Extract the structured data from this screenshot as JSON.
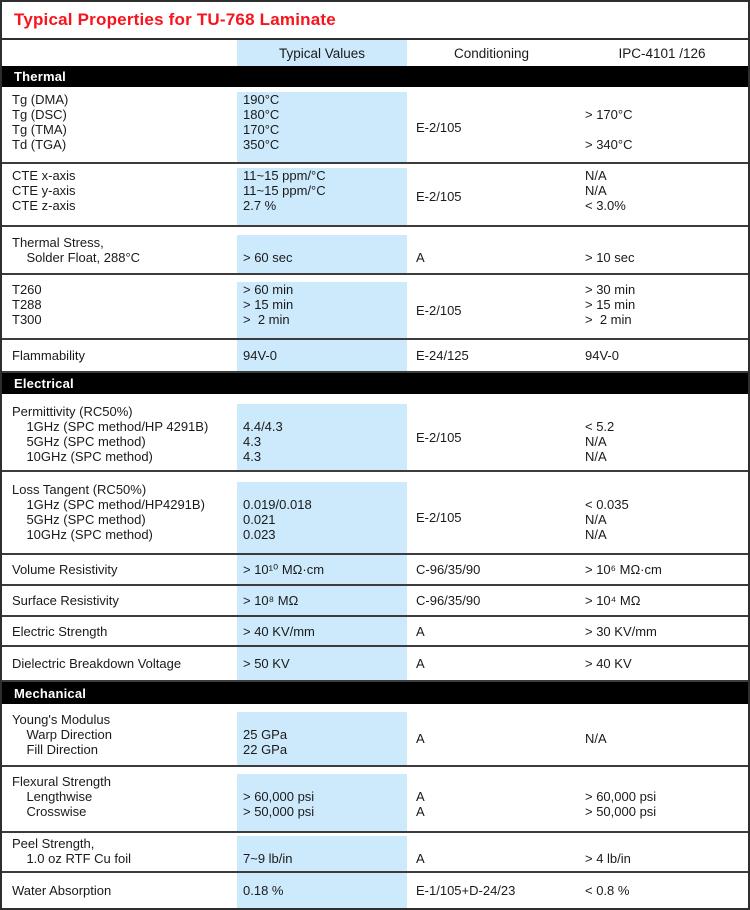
{
  "title": "Typical Properties for TU-768 Laminate",
  "colors": {
    "title_red": "#f7141d",
    "typical_values_band_blue": "#cdeafc",
    "section_bar_black": "#000000",
    "grid_line_gray": "#3c3c3c"
  },
  "header": {
    "typical": "Typical Values",
    "conditioning": "Conditioning",
    "ipc": "IPC-4101 /126"
  },
  "sections": {
    "thermal": "Thermal",
    "electrical": "Electrical",
    "mechanical": "Mechanical"
  },
  "rows": {
    "tg": {
      "props": [
        "Tg (DMA)",
        "Tg (DSC)",
        "Tg (TMA)",
        "Td (TGA)"
      ],
      "vals": [
        "190°C",
        "180°C",
        "170°C",
        "350°C"
      ],
      "cond": "E-2/105",
      "ipc": [
        "",
        "> 170°C",
        "",
        "> 340°C"
      ]
    },
    "cte": {
      "props": [
        "CTE x-axis",
        "CTE y-axis",
        "CTE z-axis"
      ],
      "vals": [
        "11~15 ppm/°C",
        "11~15 ppm/°C",
        "2.7 %"
      ],
      "cond": "E-2/105",
      "ipc": [
        "N/A",
        "N/A",
        "< 3.0%"
      ]
    },
    "stress": {
      "props": [
        "Thermal Stress,",
        "    Solder Float, 288°C"
      ],
      "vals": [
        "",
        "> 60 sec"
      ],
      "cond": [
        "",
        "A"
      ],
      "ipc": [
        "",
        "> 10 sec"
      ]
    },
    "times": {
      "props": [
        "T260",
        "T288",
        "T300"
      ],
      "vals": [
        "> 60 min",
        "> 15 min",
        ">  2 min"
      ],
      "cond": "E-2/105",
      "ipc": [
        "> 30 min",
        "> 15 min",
        ">  2 min"
      ]
    },
    "flam": {
      "label": "Flammability",
      "val": "94V-0",
      "cond": "E-24/125",
      "ipc": "94V-0"
    },
    "perm": {
      "props": [
        "Permittivity (RC50%)",
        "    1GHz (SPC method/HP 4291B)",
        "    5GHz (SPC method)",
        "    10GHz (SPC method)"
      ],
      "vals": [
        "",
        "4.4/4.3",
        "4.3",
        "4.3"
      ],
      "cond": "E-2/105",
      "ipc": [
        "",
        "< 5.2",
        "N/A",
        "N/A"
      ]
    },
    "loss": {
      "props": [
        "Loss Tangent (RC50%)",
        "    1GHz (SPC method/HP4291B)",
        "    5GHz (SPC method)",
        "    10GHz (SPC method)"
      ],
      "vals": [
        "",
        "0.019/0.018",
        "0.021",
        "0.023"
      ],
      "cond": "E-2/105",
      "ipc": [
        "",
        "< 0.035",
        "N/A",
        "N/A"
      ]
    },
    "volume": {
      "label": "Volume Resistivity",
      "val": "> 10¹⁰ MΩ·cm",
      "cond": "C-96/35/90",
      "ipc": "> 10⁶ MΩ·cm"
    },
    "surface": {
      "label": "Surface Resistivity",
      "val": "> 10⁸ MΩ",
      "cond": "C-96/35/90",
      "ipc": "> 10⁴ MΩ"
    },
    "strength": {
      "label": "Electric Strength",
      "val": "> 40 KV/mm",
      "cond": "A",
      "ipc": "> 30 KV/mm"
    },
    "breakdown": {
      "label": "Dielectric Breakdown Voltage",
      "val": "> 50 KV",
      "cond": "A",
      "ipc": "> 40 KV"
    },
    "young": {
      "props": [
        "Young's Modulus",
        "    Warp Direction",
        "    Fill Direction"
      ],
      "vals": [
        "",
        "25 GPa",
        "22 GPa"
      ],
      "cond": "A",
      "ipc": "N/A"
    },
    "flex": {
      "props": [
        "Flexural Strength",
        "    Lengthwise",
        "    Crosswise"
      ],
      "vals": [
        "",
        "> 60,000 psi",
        "> 50,000 psi"
      ],
      "cond": [
        "",
        "A",
        "A"
      ],
      "ipc": [
        "",
        "> 60,000 psi",
        "> 50,000 psi"
      ]
    },
    "peel": {
      "props": [
        "Peel Strength,",
        "    1.0 oz RTF Cu foil"
      ],
      "vals": [
        "",
        "7~9 lb/in"
      ],
      "cond": [
        "",
        "A"
      ],
      "ipc": [
        "",
        "> 4 lb/in"
      ]
    },
    "water": {
      "label": "Water Absorption",
      "val": "0.18 %",
      "cond": "E-1/105+D-24/23",
      "ipc": "< 0.8 %"
    }
  }
}
